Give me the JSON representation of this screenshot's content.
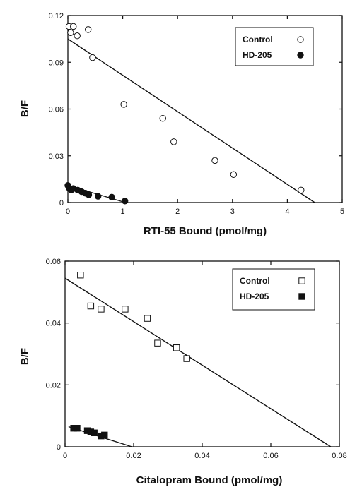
{
  "chart_data": [
    {
      "type": "scatter",
      "xlabel": "RTI-55 Bound (pmol/mg)",
      "ylabel": "B/F",
      "xlim": [
        0,
        5
      ],
      "ylim": [
        0,
        0.12
      ],
      "xticks": [
        0,
        1,
        2,
        3,
        4,
        5
      ],
      "yticks": [
        0,
        0.03,
        0.06,
        0.09,
        0.12
      ],
      "ytick_labels": [
        "0",
        "0.03",
        "0.06",
        "0.09",
        "0.12"
      ],
      "legend_position": "top-right",
      "series": [
        {
          "name": "Control",
          "marker": "open-circle",
          "x": [
            0.02,
            0.05,
            0.1,
            0.17,
            0.37,
            0.45,
            1.02,
            1.73,
            1.93,
            2.68,
            3.02,
            4.25
          ],
          "y": [
            0.113,
            0.109,
            0.113,
            0.107,
            0.111,
            0.093,
            0.063,
            0.054,
            0.039,
            0.027,
            0.018,
            0.008
          ],
          "fit_line": {
            "x": [
              0,
              4.5
            ],
            "y": [
              0.105,
              0
            ]
          }
        },
        {
          "name": "HD-205",
          "marker": "filled-circle",
          "x": [
            0.0,
            0.03,
            0.06,
            0.1,
            0.18,
            0.25,
            0.32,
            0.38,
            0.55,
            0.8,
            1.04
          ],
          "y": [
            0.011,
            0.009,
            0.008,
            0.009,
            0.008,
            0.007,
            0.006,
            0.005,
            0.004,
            0.0035,
            0.001
          ],
          "fit_line": {
            "x": [
              0,
              1.05
            ],
            "y": [
              0.011,
              0.0
            ]
          }
        }
      ]
    },
    {
      "type": "scatter",
      "xlabel": "Citalopram Bound (pmol/mg)",
      "ylabel": "B/F",
      "xlim": [
        0,
        0.08
      ],
      "ylim": [
        0,
        0.06
      ],
      "xticks": [
        0,
        0.02,
        0.04,
        0.06,
        0.08
      ],
      "xtick_labels": [
        "0",
        "0.02",
        "0.04",
        "0.06",
        "0.08"
      ],
      "yticks": [
        0,
        0.02,
        0.04,
        0.06
      ],
      "ytick_labels": [
        "0",
        "0.02",
        "0.04",
        "0.06"
      ],
      "legend_position": "top-right",
      "series": [
        {
          "name": "Control",
          "marker": "open-square",
          "x": [
            0.0045,
            0.0075,
            0.0105,
            0.0175,
            0.024,
            0.027,
            0.0325,
            0.0355
          ],
          "y": [
            0.0555,
            0.0455,
            0.0445,
            0.0445,
            0.0415,
            0.0335,
            0.032,
            0.0285
          ],
          "fit_line": {
            "x": [
              0,
              0.0775
            ],
            "y": [
              0.0545,
              0
            ]
          }
        },
        {
          "name": "HD-205",
          "marker": "filled-square",
          "x": [
            0.0025,
            0.0035,
            0.0065,
            0.0075,
            0.0085,
            0.0105,
            0.0115
          ],
          "y": [
            0.006,
            0.006,
            0.0052,
            0.0048,
            0.0045,
            0.0035,
            0.0038
          ],
          "fit_line": {
            "x": [
              0.001,
              0.0195
            ],
            "y": [
              0.0065,
              0.0
            ]
          }
        }
      ]
    }
  ]
}
